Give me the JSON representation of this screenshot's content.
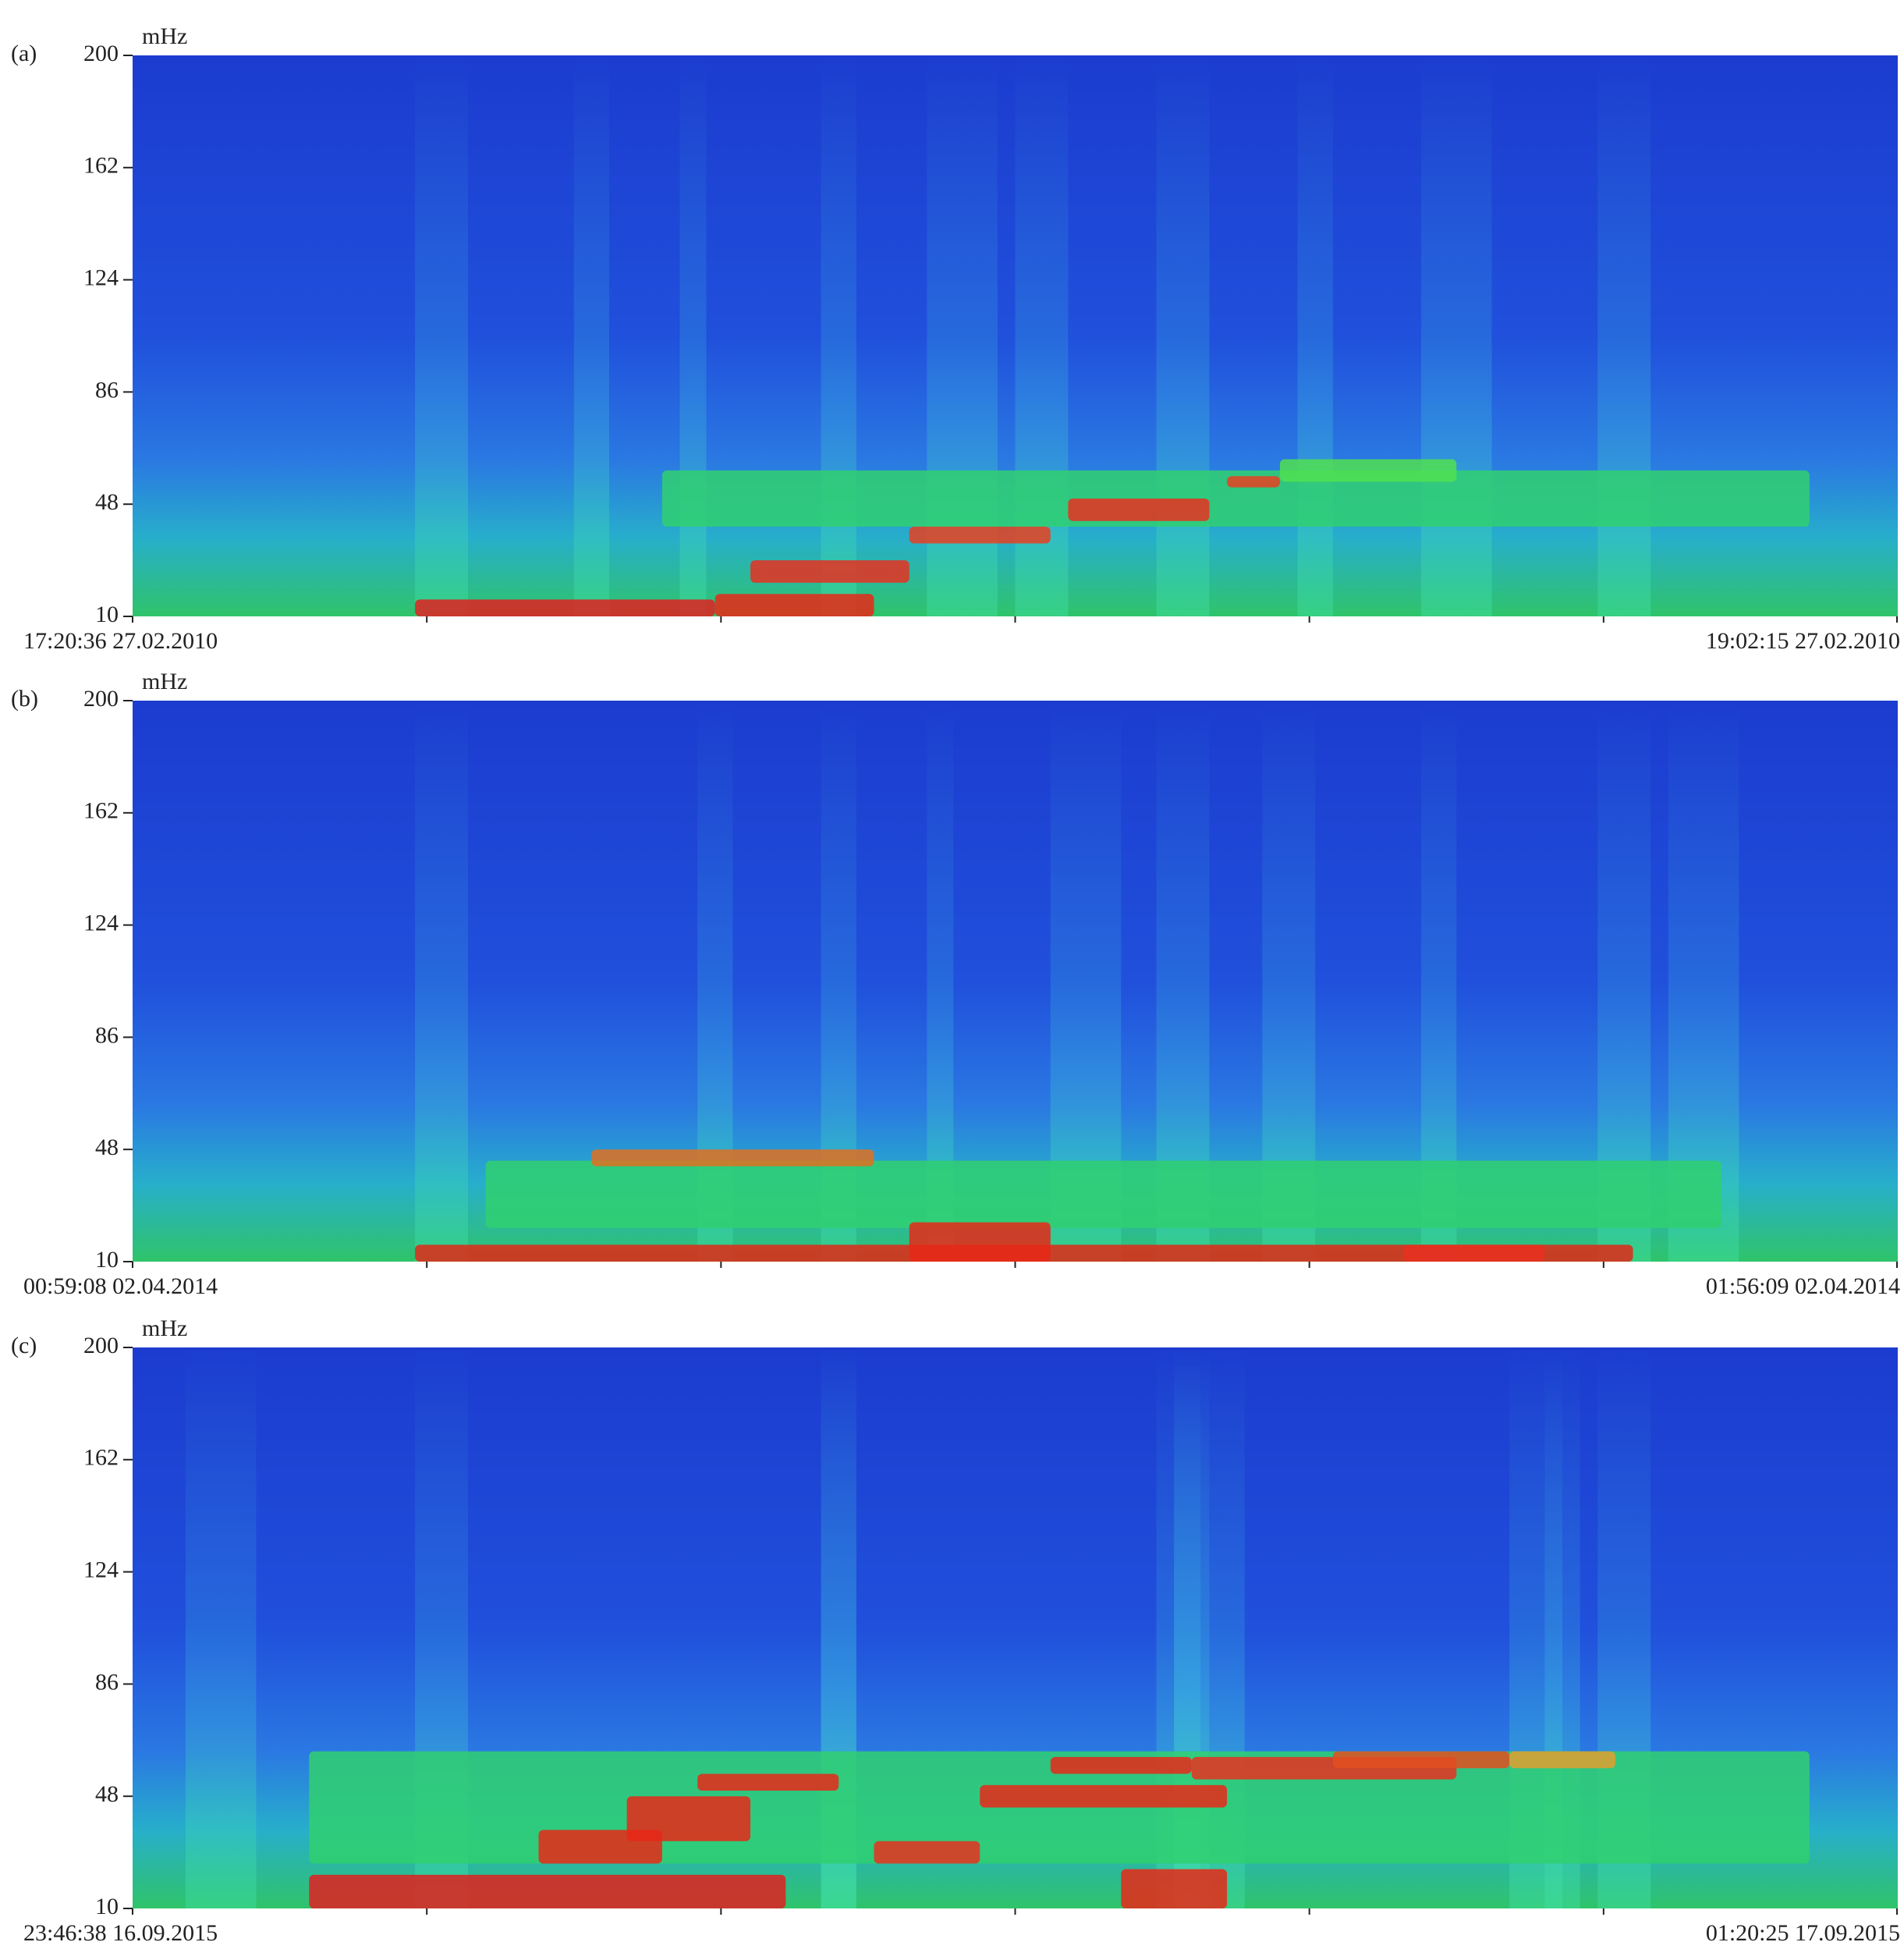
{
  "chart_data": [
    {
      "type": "spectrogram",
      "panel_label": "(a)",
      "y_unit": "mHz",
      "ylim": [
        10,
        200
      ],
      "yticks": [
        10,
        48,
        86,
        124,
        162,
        200
      ],
      "x_start_label": "17:20:36 27.02.2010",
      "x_end_label": "19:02:15 27.02.2010"
    },
    {
      "type": "spectrogram",
      "panel_label": "(b)",
      "y_unit": "mHz",
      "ylim": [
        10,
        200
      ],
      "yticks": [
        10,
        48,
        86,
        124,
        162,
        200
      ],
      "x_start_label": "00:59:08 02.04.2014",
      "x_end_label": "01:56:09 02.04.2014"
    },
    {
      "type": "spectrogram",
      "panel_label": "(c)",
      "y_unit": "mHz",
      "ylim": [
        10,
        200
      ],
      "yticks": [
        10,
        48,
        86,
        124,
        162,
        200
      ],
      "x_start_label": "23:46:38 16.09.2015",
      "x_end_label": "01:20:25 17.09.2015"
    }
  ]
}
